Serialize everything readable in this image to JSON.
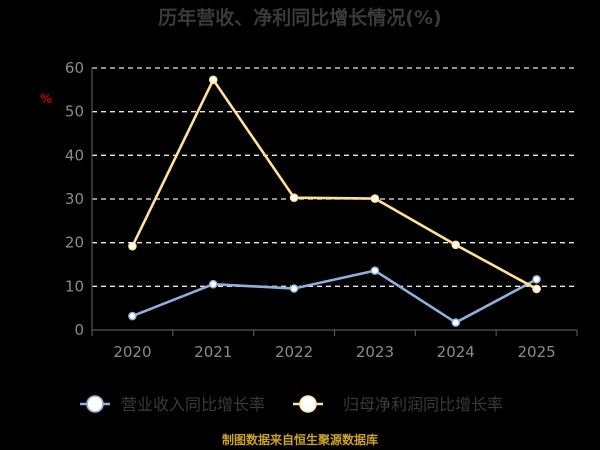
{
  "chart_data": {
    "type": "line",
    "title": "历年营收、净利同比增长情况(%)",
    "ylabel": "%",
    "categories": [
      "2020",
      "2021",
      "2022",
      "2023",
      "2024",
      "2025"
    ],
    "ylim": [
      0,
      60
    ],
    "yticks": [
      0,
      10,
      20,
      30,
      40,
      50,
      60
    ],
    "grid": true,
    "legend_position": "bottom",
    "series": [
      {
        "name": "营业收入同比增长率",
        "color": "#8fb0dd",
        "values": [
          3.2,
          10.5,
          9.5,
          13.6,
          1.7,
          11.6
        ]
      },
      {
        "name": "归母净利润同比增长率",
        "color": "#ffe29a",
        "values": [
          19.2,
          57.3,
          30.3,
          30.1,
          19.5,
          9.4
        ]
      }
    ],
    "source": "制图数据来自恒生聚源数据库"
  }
}
